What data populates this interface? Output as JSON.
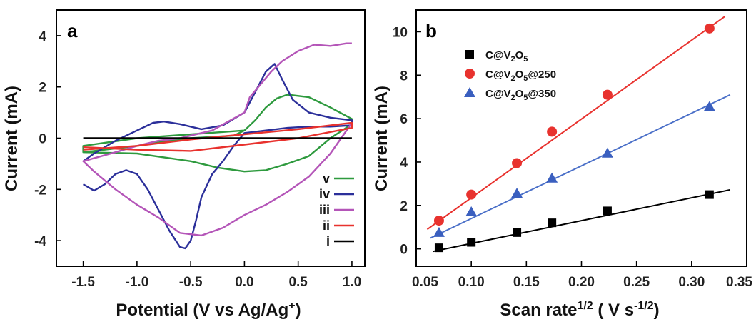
{
  "chart_data": [
    {
      "type": "line",
      "panel_label": "a",
      "xlabel_main": "Potential (V vs Ag/Ag",
      "xlabel_sup": "+",
      "xlabel_end": ")",
      "ylabel": "Current (mA)",
      "xlim": [
        -1.75,
        1.12
      ],
      "ylim": [
        -5.0,
        5.0
      ],
      "xticks": [
        -1.5,
        -1.0,
        -0.5,
        0.0,
        0.5,
        1.0
      ],
      "xtick_labels": [
        "-1.5",
        "-1.0",
        "-0.5",
        "0.0",
        "0.5",
        "1.0"
      ],
      "yticks": [
        -4,
        -2,
        0,
        2,
        4
      ],
      "ytick_labels": [
        "-4",
        "-2",
        "0",
        "2",
        "4"
      ],
      "legend_position": "bottom-right",
      "series": [
        {
          "name": "v",
          "color": "#2e9a3e",
          "x": [
            0.0,
            -0.5,
            -1.0,
            -1.5,
            -1.5,
            -1.0,
            -0.5,
            -0.25,
            0.0,
            0.2,
            0.4,
            0.6,
            0.8,
            1.0,
            1.0,
            0.8,
            0.6,
            0.4,
            0.3,
            0.2,
            0.1,
            0.0,
            -0.1,
            -0.3,
            -0.5,
            -0.7,
            -1.0,
            -1.3,
            -1.5
          ],
          "y": [
            0.3,
            0.15,
            0.0,
            -0.3,
            -0.55,
            -0.6,
            -0.9,
            -1.15,
            -1.3,
            -1.25,
            -1.0,
            -0.7,
            0.0,
            0.55,
            0.75,
            1.2,
            1.6,
            1.7,
            1.55,
            1.2,
            0.7,
            0.3,
            0.1,
            0.05,
            0.0,
            -0.1,
            -0.3,
            -0.45,
            -0.55
          ]
        },
        {
          "name": "iv",
          "color": "#2b2f9a",
          "x": [
            -1.5,
            -1.4,
            -1.3,
            -1.2,
            -1.1,
            -1.0,
            -0.9,
            -0.8,
            -0.7,
            -0.6,
            -0.55,
            -0.5,
            -0.45,
            -0.4,
            -0.3,
            -0.2,
            -0.1,
            0.0,
            0.2,
            0.4,
            0.6,
            0.8,
            1.0,
            1.0,
            0.8,
            0.6,
            0.45,
            0.35,
            0.28,
            0.2,
            0.1,
            0.0,
            -0.2,
            -0.4,
            -0.6,
            -0.75,
            -0.85,
            -1.0,
            -1.2,
            -1.4,
            -1.5
          ],
          "y": [
            -1.8,
            -2.05,
            -1.8,
            -1.4,
            -1.25,
            -1.4,
            -2.0,
            -2.8,
            -3.6,
            -4.25,
            -4.3,
            -4.0,
            -3.2,
            -2.3,
            -1.4,
            -0.9,
            -0.3,
            0.2,
            0.3,
            0.4,
            0.45,
            0.45,
            0.5,
            0.7,
            0.8,
            1.0,
            1.5,
            2.3,
            2.9,
            2.6,
            1.8,
            1.0,
            0.5,
            0.35,
            0.55,
            0.65,
            0.6,
            0.3,
            -0.1,
            -0.6,
            -0.9
          ]
        },
        {
          "name": "iii",
          "color": "#b455b8",
          "x": [
            1.0,
            0.8,
            0.6,
            0.4,
            0.2,
            0.0,
            -0.2,
            -0.4,
            -0.6,
            -0.8,
            -1.0,
            -1.2,
            -1.4,
            -1.5,
            -1.2,
            -1.0,
            -0.8,
            -0.6,
            -0.3,
            0.0,
            0.05,
            0.15,
            0.25,
            0.35,
            0.5,
            0.65,
            0.8,
            0.95,
            1.0
          ],
          "y": [
            0.6,
            -0.6,
            -1.5,
            -2.1,
            -2.6,
            -3.0,
            -3.5,
            -3.8,
            -3.7,
            -3.1,
            -2.6,
            -2.0,
            -1.3,
            -0.9,
            -0.55,
            -0.3,
            -0.1,
            0.0,
            0.3,
            1.0,
            1.6,
            2.1,
            2.6,
            3.0,
            3.4,
            3.65,
            3.6,
            3.7,
            3.7
          ]
        },
        {
          "name": "ii",
          "color": "#e8322e",
          "x": [
            -1.5,
            -1.0,
            -0.5,
            0.0,
            0.5,
            1.0,
            1.0,
            0.5,
            0.0,
            -0.5,
            -1.0,
            -1.5
          ],
          "y": [
            -0.35,
            -0.45,
            -0.5,
            -0.25,
            0.0,
            0.4,
            0.6,
            0.35,
            0.15,
            -0.05,
            -0.3,
            -0.45
          ]
        },
        {
          "name": "i",
          "color": "#000000",
          "x": [
            -1.5,
            1.0
          ],
          "y": [
            0.0,
            0.0
          ]
        }
      ]
    },
    {
      "type": "scatter",
      "panel_label": "b",
      "xlabel_main": "Scan rate",
      "xlabel_sup": "1/2",
      "xlabel_unit_main": " ( V s",
      "xlabel_unit_sup": "-1/2",
      "xlabel_unit_end": ")",
      "ylabel": "Current (mA)",
      "xlim": [
        0.05,
        0.35
      ],
      "ylim": [
        -0.8,
        11.0
      ],
      "xticks": [
        0.05,
        0.1,
        0.15,
        0.2,
        0.25,
        0.3,
        0.35
      ],
      "xtick_labels": [
        "0.05",
        "0.10",
        "0.15",
        "0.20",
        "0.25",
        "0.30",
        "0.35"
      ],
      "yticks": [
        0,
        2,
        4,
        6,
        8,
        10
      ],
      "ytick_labels": [
        "0",
        "2",
        "4",
        "6",
        "8",
        "10"
      ],
      "legend_position": "top-left",
      "x": [
        0.0707,
        0.1,
        0.1414,
        0.1732,
        0.2236,
        0.3162
      ],
      "series": [
        {
          "name_main": "C@V",
          "name_sub1": "2",
          "name_mid": "O",
          "name_sub2": "5",
          "name_end": "",
          "marker": "square",
          "color": "#000000",
          "values": [
            0.05,
            0.3,
            0.75,
            1.2,
            1.75,
            2.5
          ],
          "fit": {
            "x": [
              0.065,
              0.335
            ],
            "y": [
              -0.12,
              2.72
            ]
          }
        },
        {
          "name_main": "C@V",
          "name_sub1": "2",
          "name_mid": "O",
          "name_sub2": "5",
          "name_end": "@250",
          "marker": "circle",
          "color": "#e8322e",
          "values": [
            1.3,
            2.5,
            3.95,
            5.4,
            7.1,
            10.15
          ],
          "fit": {
            "x": [
              0.06,
              0.33
            ],
            "y": [
              0.9,
              10.7
            ]
          }
        },
        {
          "name_main": "C@V",
          "name_sub1": "2",
          "name_mid": "O",
          "name_sub2": "5",
          "name_end": "@350",
          "marker": "triangle",
          "color": "#3a5fbf",
          "values": [
            0.75,
            1.7,
            2.55,
            3.25,
            4.4,
            6.55
          ],
          "fit": {
            "x": [
              0.063,
              0.335
            ],
            "y": [
              0.5,
              7.1
            ]
          },
          "line_color": "#4a6fc8"
        }
      ]
    }
  ]
}
